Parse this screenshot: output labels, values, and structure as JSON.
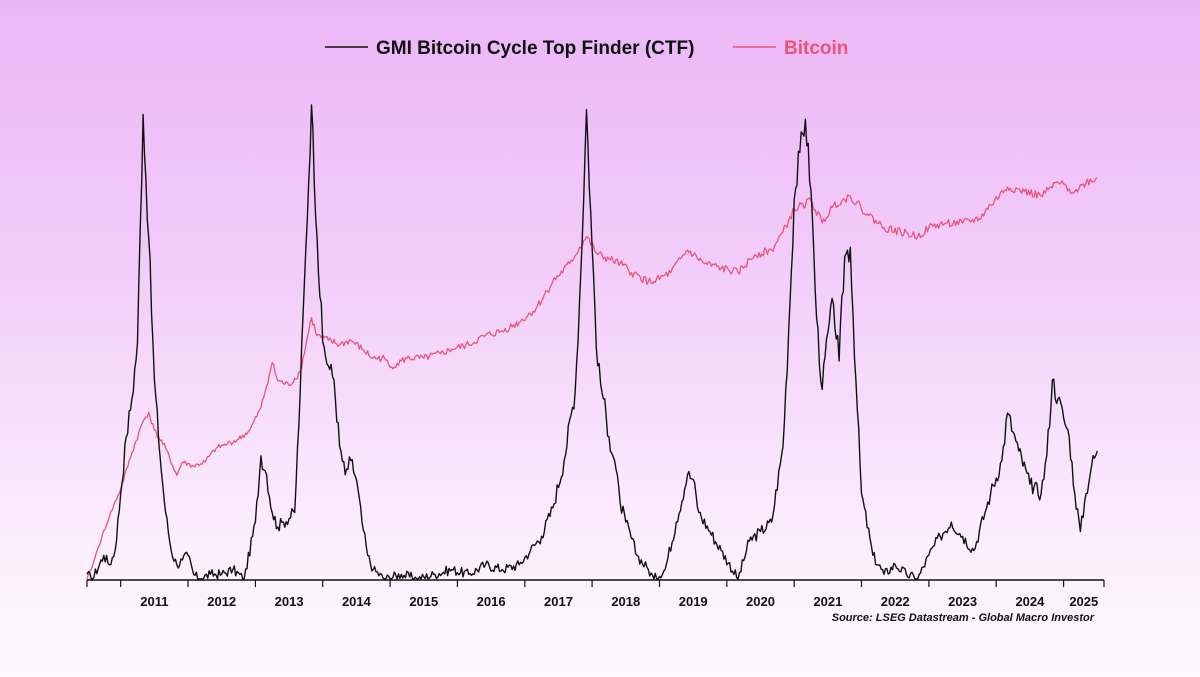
{
  "legend": {
    "ctf_label": "GMI Bitcoin Cycle Top Finder (CTF)",
    "btc_label": "Bitcoin"
  },
  "colors": {
    "ctf": "#111111",
    "btc": "#e8557a",
    "axis": "#111111"
  },
  "source": "Source: LSEG Datastream - Global Macro Investor",
  "chart_data": {
    "type": "line",
    "x_axis": {
      "type": "date",
      "range": [
        "2010-07",
        "2025-08"
      ],
      "tick_labels": [
        "2011",
        "2012",
        "2013",
        "2014",
        "2015",
        "2016",
        "2017",
        "2018",
        "2019",
        "2020",
        "2021",
        "2022",
        "2023",
        "2024",
        "2025"
      ]
    },
    "y_axis": {
      "left": "unlabeled",
      "right": "unlabeled (log scale)"
    },
    "grid": false,
    "legend_position": "top-center",
    "series": [
      {
        "name": "GMI Bitcoin Cycle Top Finder (CTF)",
        "color": "#111111",
        "scale": "relative 0-100",
        "points": [
          [
            "2010-07",
            1
          ],
          [
            "2010-08",
            0
          ],
          [
            "2010-10",
            5
          ],
          [
            "2010-11",
            3
          ],
          [
            "2010-12",
            6
          ],
          [
            "2011-01",
            18
          ],
          [
            "2011-02",
            30
          ],
          [
            "2011-03",
            38
          ],
          [
            "2011-04",
            50
          ],
          [
            "2011-05",
            98
          ],
          [
            "2011-06",
            72
          ],
          [
            "2011-07",
            42
          ],
          [
            "2011-08",
            26
          ],
          [
            "2011-09",
            14
          ],
          [
            "2011-10",
            6
          ],
          [
            "2011-11",
            3
          ],
          [
            "2011-12",
            4
          ],
          [
            "2012-01",
            5
          ],
          [
            "2012-02",
            1
          ],
          [
            "2012-03",
            0
          ],
          [
            "2012-05",
            1
          ],
          [
            "2012-07",
            1
          ],
          [
            "2012-09",
            2
          ],
          [
            "2012-11",
            0
          ],
          [
            "2013-01",
            12
          ],
          [
            "2013-02",
            26
          ],
          [
            "2013-03",
            22
          ],
          [
            "2013-04",
            14
          ],
          [
            "2013-05",
            11
          ],
          [
            "2013-06",
            12
          ],
          [
            "2013-08",
            14
          ],
          [
            "2013-09",
            40
          ],
          [
            "2013-10",
            70
          ],
          [
            "2013-11",
            100
          ],
          [
            "2013-12",
            72
          ],
          [
            "2014-01",
            50
          ],
          [
            "2014-02",
            45
          ],
          [
            "2014-03",
            42
          ],
          [
            "2014-04",
            28
          ],
          [
            "2014-05",
            22
          ],
          [
            "2014-06",
            25
          ],
          [
            "2014-07",
            21
          ],
          [
            "2014-08",
            12
          ],
          [
            "2014-09",
            5
          ],
          [
            "2014-10",
            2
          ],
          [
            "2014-12",
            0
          ],
          [
            "2015-03",
            1
          ],
          [
            "2015-06",
            0
          ],
          [
            "2015-09",
            1
          ],
          [
            "2015-12",
            2
          ],
          [
            "2016-03",
            1
          ],
          [
            "2016-06",
            3
          ],
          [
            "2016-09",
            2
          ],
          [
            "2016-12",
            3
          ],
          [
            "2017-02",
            6
          ],
          [
            "2017-04",
            9
          ],
          [
            "2017-06",
            15
          ],
          [
            "2017-08",
            25
          ],
          [
            "2017-10",
            40
          ],
          [
            "2017-11",
            65
          ],
          [
            "2017-12",
            99
          ],
          [
            "2018-01",
            70
          ],
          [
            "2018-02",
            45
          ],
          [
            "2018-03",
            38
          ],
          [
            "2018-04",
            30
          ],
          [
            "2018-05",
            25
          ],
          [
            "2018-06",
            16
          ],
          [
            "2018-07",
            12
          ],
          [
            "2018-09",
            5
          ],
          [
            "2018-11",
            2
          ],
          [
            "2018-12",
            0
          ],
          [
            "2019-02",
            2
          ],
          [
            "2019-04",
            12
          ],
          [
            "2019-06",
            22
          ],
          [
            "2019-07",
            21
          ],
          [
            "2019-08",
            14
          ],
          [
            "2019-10",
            10
          ],
          [
            "2019-12",
            6
          ],
          [
            "2020-03",
            0
          ],
          [
            "2020-05",
            8
          ],
          [
            "2020-07",
            10
          ],
          [
            "2020-09",
            12
          ],
          [
            "2020-11",
            28
          ],
          [
            "2020-12",
            52
          ],
          [
            "2021-01",
            80
          ],
          [
            "2021-02",
            90
          ],
          [
            "2021-03",
            97
          ],
          [
            "2021-04",
            82
          ],
          [
            "2021-05",
            55
          ],
          [
            "2021-06",
            40
          ],
          [
            "2021-07",
            52
          ],
          [
            "2021-08",
            58
          ],
          [
            "2021-09",
            46
          ],
          [
            "2021-10",
            68
          ],
          [
            "2021-11",
            70
          ],
          [
            "2021-12",
            42
          ],
          [
            "2022-01",
            18
          ],
          [
            "2022-03",
            5
          ],
          [
            "2022-05",
            1
          ],
          [
            "2022-07",
            3
          ],
          [
            "2022-09",
            1
          ],
          [
            "2022-11",
            0
          ],
          [
            "2023-01",
            5
          ],
          [
            "2023-03",
            9
          ],
          [
            "2023-05",
            12
          ],
          [
            "2023-07",
            9
          ],
          [
            "2023-09",
            6
          ],
          [
            "2023-11",
            14
          ],
          [
            "2023-12",
            18
          ],
          [
            "2024-02",
            25
          ],
          [
            "2024-03",
            35
          ],
          [
            "2024-04",
            31
          ],
          [
            "2024-05",
            27
          ],
          [
            "2024-07",
            20
          ],
          [
            "2024-09",
            18
          ],
          [
            "2024-10",
            26
          ],
          [
            "2024-11",
            42
          ],
          [
            "2024-12",
            38
          ],
          [
            "2025-01",
            34
          ],
          [
            "2025-02",
            30
          ],
          [
            "2025-03",
            18
          ],
          [
            "2025-04",
            10
          ],
          [
            "2025-05",
            18
          ],
          [
            "2025-06",
            24
          ],
          [
            "2025-07",
            27
          ]
        ]
      },
      {
        "name": "Bitcoin",
        "color": "#e8557a",
        "scale": "log (relative level)",
        "points": [
          [
            "2010-07",
            0
          ],
          [
            "2010-08",
            3
          ],
          [
            "2010-09",
            7
          ],
          [
            "2010-11",
            14
          ],
          [
            "2011-01",
            20
          ],
          [
            "2011-03",
            28
          ],
          [
            "2011-05",
            35
          ],
          [
            "2011-06",
            37
          ],
          [
            "2011-07",
            33
          ],
          [
            "2011-09",
            29
          ],
          [
            "2011-11",
            23
          ],
          [
            "2011-12",
            26
          ],
          [
            "2012-02",
            25
          ],
          [
            "2012-04",
            26
          ],
          [
            "2012-06",
            29
          ],
          [
            "2012-08",
            30
          ],
          [
            "2012-10",
            31
          ],
          [
            "2012-12",
            33
          ],
          [
            "2013-02",
            38
          ],
          [
            "2013-04",
            48
          ],
          [
            "2013-05",
            44
          ],
          [
            "2013-07",
            43
          ],
          [
            "2013-09",
            46
          ],
          [
            "2013-11",
            58
          ],
          [
            "2013-12",
            54
          ],
          [
            "2014-02",
            53
          ],
          [
            "2014-04",
            52
          ],
          [
            "2014-06",
            53
          ],
          [
            "2014-08",
            51
          ],
          [
            "2014-10",
            49
          ],
          [
            "2014-12",
            49
          ],
          [
            "2015-01",
            47
          ],
          [
            "2015-04",
            49
          ],
          [
            "2015-07",
            49
          ],
          [
            "2015-10",
            50
          ],
          [
            "2015-12",
            51
          ],
          [
            "2016-03",
            52
          ],
          [
            "2016-06",
            54
          ],
          [
            "2016-09",
            55
          ],
          [
            "2016-12",
            57
          ],
          [
            "2017-03",
            60
          ],
          [
            "2017-06",
            66
          ],
          [
            "2017-09",
            70
          ],
          [
            "2017-12",
            76
          ],
          [
            "2018-02",
            72
          ],
          [
            "2018-04",
            71
          ],
          [
            "2018-06",
            70
          ],
          [
            "2018-08",
            68
          ],
          [
            "2018-11",
            66
          ],
          [
            "2018-12",
            66
          ],
          [
            "2019-03",
            68
          ],
          [
            "2019-06",
            73
          ],
          [
            "2019-09",
            70
          ],
          [
            "2019-12",
            69
          ],
          [
            "2020-03",
            68
          ],
          [
            "2020-06",
            72
          ],
          [
            "2020-09",
            73
          ],
          [
            "2020-11",
            77
          ],
          [
            "2021-01",
            82
          ],
          [
            "2021-04",
            84
          ],
          [
            "2021-06",
            79
          ],
          [
            "2021-08",
            83
          ],
          [
            "2021-11",
            85
          ],
          [
            "2022-02",
            81
          ],
          [
            "2022-05",
            78
          ],
          [
            "2022-08",
            77
          ],
          [
            "2022-11",
            76
          ],
          [
            "2023-01",
            78
          ],
          [
            "2023-04",
            79
          ],
          [
            "2023-07",
            79
          ],
          [
            "2023-10",
            80
          ],
          [
            "2023-12",
            83
          ],
          [
            "2024-03",
            87
          ],
          [
            "2024-06",
            86
          ],
          [
            "2024-09",
            85
          ],
          [
            "2024-12",
            88
          ],
          [
            "2025-03",
            86
          ],
          [
            "2025-05",
            88
          ],
          [
            "2025-07",
            89
          ]
        ]
      }
    ]
  }
}
